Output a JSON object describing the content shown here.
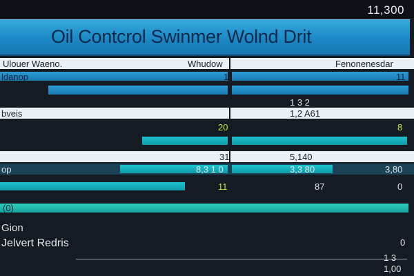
{
  "header": {
    "corner_value": "11,300"
  },
  "title": "Oil Contcrol Swinmer Wolnd Drit",
  "table": {
    "header_row": {
      "col1": "Ulouer Waeno.",
      "col2": "Whudow",
      "col3": "Fenonenesdar"
    },
    "rows": [
      {
        "label": "ldanop",
        "v1": "1",
        "v2": "11"
      },
      {
        "label": "",
        "v1": "",
        "v2": "1 3 2"
      },
      {
        "label": "bveis",
        "v1": "",
        "v2": "1,2 A61"
      },
      {
        "label": "",
        "v1": "20",
        "v2": "8"
      },
      {
        "label": "",
        "v1": "31",
        "v2": "5,140"
      },
      {
        "label": "op",
        "v1": "8,3 1 0",
        "v2": "3,3 80",
        "v3": "3,80"
      },
      {
        "label": "",
        "v1": "11",
        "v2": "87",
        "v3": "0"
      },
      {
        "label": "(0)",
        "v1": "",
        "v2": ""
      },
      {
        "label": "Gion",
        "v1": "",
        "v2": ""
      },
      {
        "label": "Jelvert Redris",
        "v1": "",
        "v2": "0"
      }
    ]
  },
  "footer": {
    "value_a": "1 3",
    "value_b": "1,00"
  },
  "colors": {
    "accent_blue": "#1c88c6",
    "accent_teal": "#17b3c0",
    "highlight_green": "#c6e83a"
  }
}
